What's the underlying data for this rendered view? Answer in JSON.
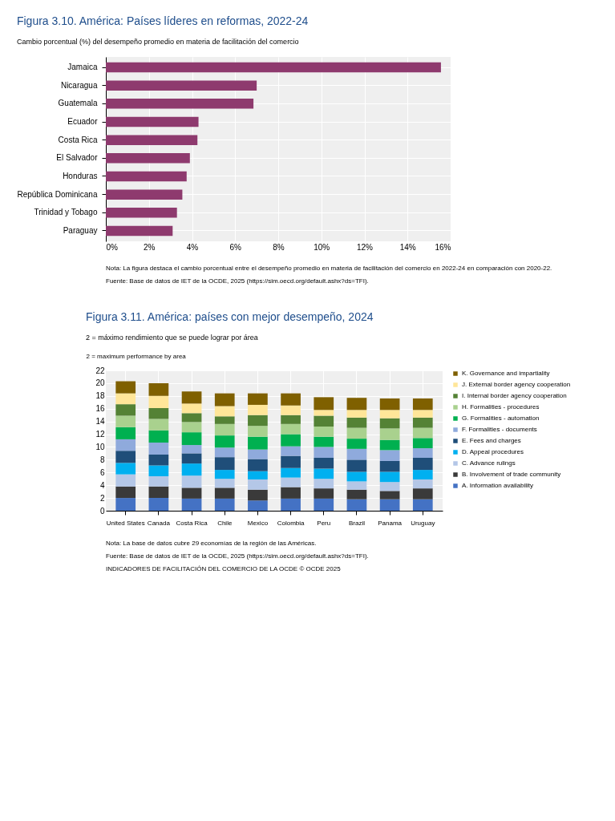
{
  "chart_data": [
    {
      "type": "bar",
      "orientation": "horizontal",
      "title": "Figura 3.10. América: Países líderes en reformas, 2022-24",
      "subtitle": "Cambio porcentual (%) del desempeño promedio en materia de facilitación del comercio",
      "categories": [
        "Jamaica",
        "Nicaragua",
        "Guatemala",
        "Ecuador",
        "Costa Rica",
        "El Salvador",
        "Honduras",
        "República Dominicana",
        "Trinidad y Tobago",
        "Paraguay"
      ],
      "values": [
        15.55,
        7.0,
        6.85,
        4.3,
        4.25,
        3.9,
        3.75,
        3.55,
        3.3,
        3.1
      ],
      "color": "#8e3a6e",
      "xlim": [
        0,
        16
      ],
      "xticks": [
        {
          "value": 0,
          "label": "0%"
        },
        {
          "value": 2,
          "label": "2%"
        },
        {
          "value": 4,
          "label": "4%"
        },
        {
          "value": 6,
          "label": "6%"
        },
        {
          "value": 8,
          "label": "8%"
        },
        {
          "value": 10,
          "label": "10%"
        },
        {
          "value": 12,
          "label": "12%"
        },
        {
          "value": 14,
          "label": "14%"
        },
        {
          "value": 16,
          "label": "16%"
        }
      ],
      "grid": true,
      "annotations": [
        "Nota: La figura destaca el cambio porcentual entre el desempeño promedio en materia de facilitación del comercio en 2022-24 en comparación con 2020-22.",
        "Fuente: Base de datos de IET de la OCDE, 2025 (https://sim.oecd.org/default.ashx?ds=TFI)."
      ]
    },
    {
      "type": "bar",
      "stacked": true,
      "title": "Figura 3.11. América: países con mejor desempeño, 2024",
      "subtitle": "2 = máximo rendimiento que se puede lograr por área",
      "ylabel": "2 = maximum performance by area",
      "categories": [
        "United States",
        "Canada",
        "Costa Rica",
        "Chile",
        "Mexico",
        "Colombia",
        "Peru",
        "Brazil",
        "Panama",
        "Uruguay"
      ],
      "series": [
        {
          "name": "A. Information availability",
          "color": "#4472c4",
          "values": [
            2.0,
            2.0,
            1.9,
            1.9,
            1.6,
            1.9,
            1.9,
            1.8,
            1.8,
            1.8
          ]
        },
        {
          "name": "B. Involvement of trade community",
          "color": "#3a3a3a",
          "values": [
            1.8,
            1.8,
            1.7,
            1.7,
            1.7,
            1.8,
            1.6,
            1.5,
            1.3,
            1.7
          ]
        },
        {
          "name": "C. Advance rulings",
          "color": "#b4c7e7",
          "values": [
            1.9,
            1.6,
            1.9,
            1.4,
            1.6,
            1.5,
            1.5,
            1.3,
            1.4,
            1.4
          ]
        },
        {
          "name": "D. Appeal procedures",
          "color": "#00b0f0",
          "values": [
            1.8,
            1.7,
            1.9,
            1.4,
            1.3,
            1.5,
            1.6,
            1.5,
            1.6,
            1.5
          ]
        },
        {
          "name": "E. Fees and charges",
          "color": "#1f4e79",
          "values": [
            1.9,
            1.7,
            1.6,
            2.0,
            1.9,
            1.9,
            1.7,
            1.9,
            1.7,
            1.9
          ]
        },
        {
          "name": "F. Formalities - documents",
          "color": "#8faadc",
          "values": [
            1.8,
            1.9,
            1.3,
            1.5,
            1.5,
            1.5,
            1.7,
            1.7,
            1.7,
            1.5
          ]
        },
        {
          "name": "G. Formalities - automation",
          "color": "#00b050",
          "values": [
            1.9,
            1.9,
            2.0,
            1.9,
            2.0,
            1.9,
            1.6,
            1.6,
            1.6,
            1.6
          ]
        },
        {
          "name": "H. Formalities - procedures",
          "color": "#a9d18e",
          "values": [
            1.8,
            1.8,
            1.6,
            1.8,
            1.7,
            1.6,
            1.6,
            1.7,
            1.8,
            1.6
          ]
        },
        {
          "name": "I. Internal border agency cooperation",
          "color": "#548235",
          "values": [
            1.8,
            1.7,
            1.4,
            1.2,
            1.7,
            1.4,
            1.7,
            1.6,
            1.6,
            1.6
          ]
        },
        {
          "name": "J. External border agency cooperation",
          "color": "#ffe699",
          "values": [
            1.7,
            1.9,
            1.5,
            1.6,
            1.6,
            1.5,
            0.9,
            1.2,
            1.3,
            1.2
          ]
        },
        {
          "name": "K. Governance and impartiality",
          "color": "#7f6000",
          "values": [
            1.9,
            2.0,
            1.9,
            2.0,
            1.8,
            1.9,
            2.0,
            1.9,
            1.8,
            1.8
          ]
        }
      ],
      "ylim": [
        0,
        22
      ],
      "yticks": [
        0,
        2,
        4,
        6,
        8,
        10,
        12,
        14,
        16,
        18,
        20,
        22
      ],
      "grid": true,
      "legend": "right",
      "annotations": [
        "Nota: La base de datos cubre 29 economías de la región de las Américas.",
        "Fuente: Base de datos de IET de la OCDE, 2025 (https://sim.oecd.org/default.ashx?ds=TFI).",
        "INDICADORES DE FACILITACIÓN DEL COMERCIO DE LA OCDE © OCDE 2025"
      ]
    }
  ]
}
